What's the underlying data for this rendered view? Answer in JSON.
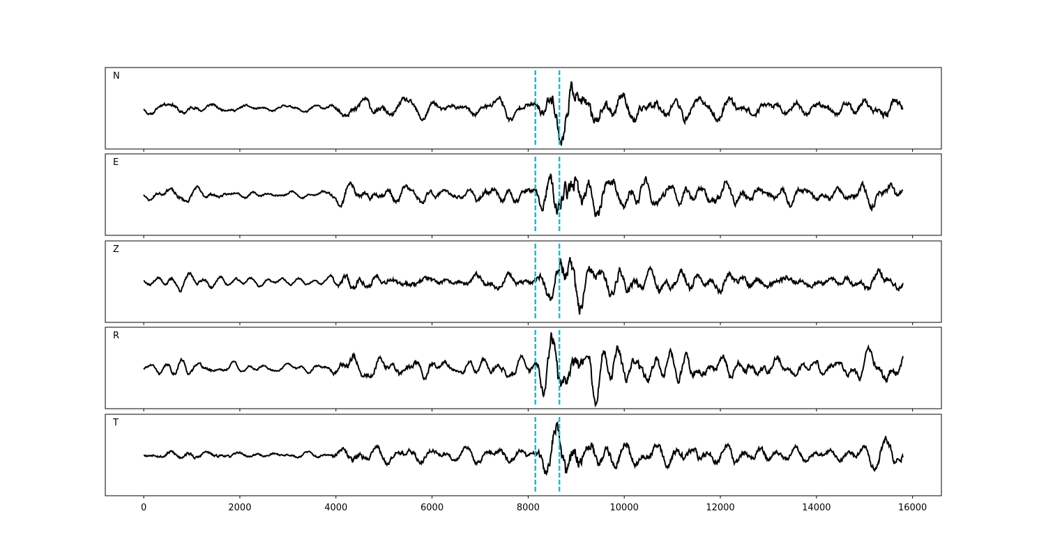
{
  "chart_data": {
    "type": "line",
    "layout": "stacked-subplots",
    "shared_x": true,
    "xlim": [
      -800,
      16600
    ],
    "x_ticks": [
      0,
      2000,
      4000,
      6000,
      8000,
      10000,
      12000,
      14000,
      16000
    ],
    "x_tick_labels": [
      "0",
      "2000",
      "4000",
      "6000",
      "8000",
      "10000",
      "12000",
      "14000",
      "16000"
    ],
    "x_range": [
      0,
      15800
    ],
    "y_ticks_visible": false,
    "grid": false,
    "line_color": "#000000",
    "marker_color": "#17becf",
    "markers": [
      {
        "x": 8150,
        "style": "dashed"
      },
      {
        "x": 8650,
        "style": "dashed"
      }
    ],
    "series": [
      {
        "name": "N",
        "seed": 11,
        "ylim": [
          -1.05,
          1.05
        ]
      },
      {
        "name": "E",
        "seed": 23,
        "ylim": [
          -1.05,
          1.05
        ]
      },
      {
        "name": "Z",
        "seed": 37,
        "ylim": [
          -1.05,
          1.05
        ]
      },
      {
        "name": "R",
        "seed": 41,
        "ylim": [
          -1.05,
          1.05
        ]
      },
      {
        "name": "T",
        "seed": 53,
        "ylim": [
          -1.05,
          1.05
        ]
      }
    ],
    "envelope": [
      {
        "x": 0,
        "amp": 0.09
      },
      {
        "x": 700,
        "amp": 0.18
      },
      {
        "x": 1500,
        "amp": 0.12
      },
      {
        "x": 2600,
        "amp": 0.08
      },
      {
        "x": 3800,
        "amp": 0.1
      },
      {
        "x": 4300,
        "amp": 0.32
      },
      {
        "x": 5000,
        "amp": 0.22
      },
      {
        "x": 5700,
        "amp": 0.25
      },
      {
        "x": 6500,
        "amp": 0.16
      },
      {
        "x": 7400,
        "amp": 0.28
      },
      {
        "x": 8100,
        "amp": 0.2
      },
      {
        "x": 8500,
        "amp": 0.75
      },
      {
        "x": 8750,
        "amp": 0.95
      },
      {
        "x": 9200,
        "amp": 0.55
      },
      {
        "x": 9700,
        "amp": 0.5
      },
      {
        "x": 10500,
        "amp": 0.4
      },
      {
        "x": 11500,
        "amp": 0.33
      },
      {
        "x": 12500,
        "amp": 0.3
      },
      {
        "x": 13500,
        "amp": 0.25
      },
      {
        "x": 14500,
        "amp": 0.22
      },
      {
        "x": 15500,
        "amp": 0.38
      },
      {
        "x": 15800,
        "amp": 0.28
      }
    ]
  }
}
